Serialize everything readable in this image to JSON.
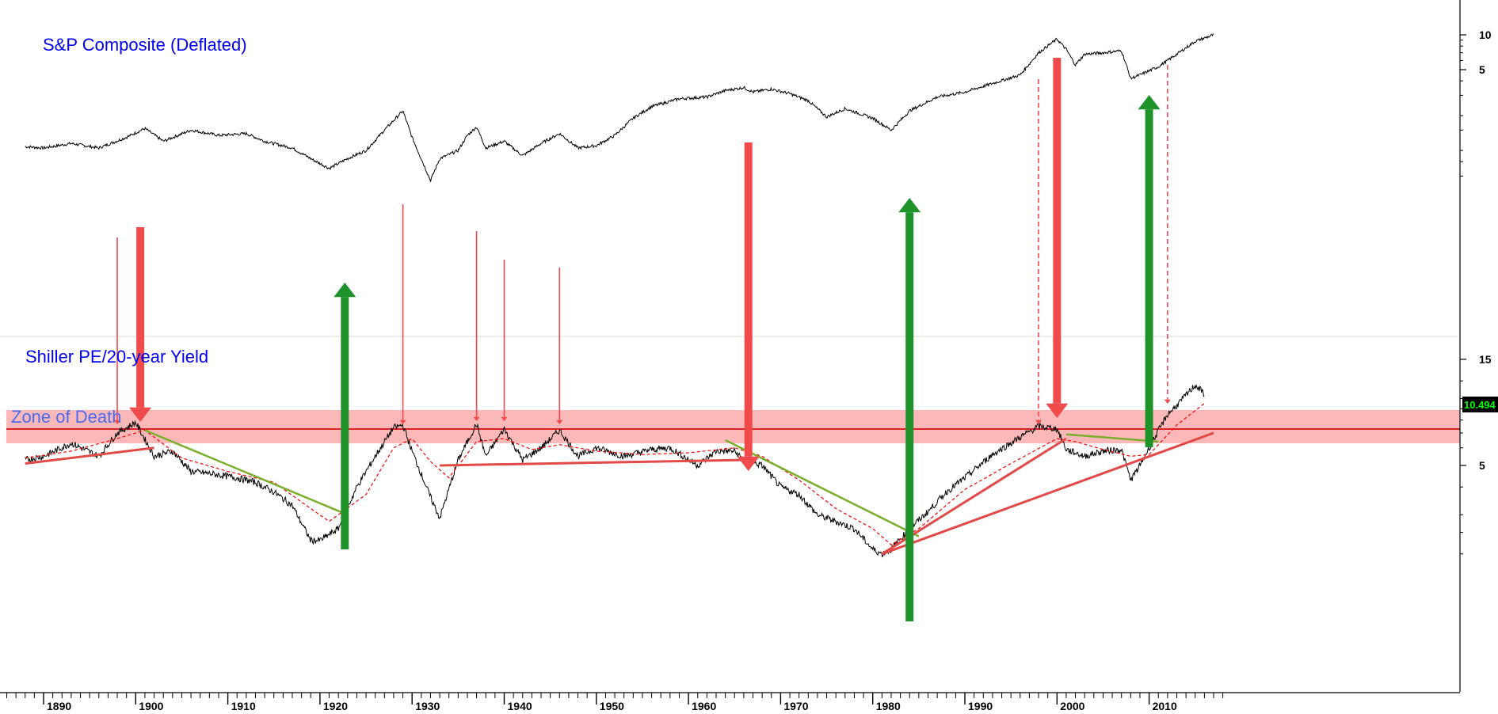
{
  "chart_data": [
    {
      "panel": "top",
      "type": "line",
      "title": "S&P Composite (Deflated)",
      "xlabel": "",
      "ylabel": "",
      "scale": "log",
      "right_axis_ticks": [
        "10",
        "5"
      ],
      "series": [
        {
          "color": "#000000",
          "x": [
            1888,
            1890,
            1893,
            1896,
            1899,
            1901,
            1903,
            1906,
            1909,
            1912,
            1914,
            1917,
            1919,
            1921,
            1923,
            1925,
            1927,
            1929,
            1930,
            1932,
            1933,
            1935,
            1936,
            1937,
            1938,
            1940,
            1942,
            1944,
            1946,
            1948,
            1950,
            1952,
            1954,
            1956,
            1959,
            1962,
            1964,
            1966,
            1967,
            1969,
            1971,
            1973,
            1975,
            1977,
            1980,
            1982,
            1984,
            1987,
            1990,
            1993,
            1996,
            1998,
            2000,
            2001,
            2002,
            2003,
            2005,
            2007,
            2008,
            2009,
            2011,
            2013,
            2015,
            2017
          ],
          "y": [
            1.08,
            1.05,
            1.15,
            1.05,
            1.3,
            1.55,
            1.2,
            1.5,
            1.35,
            1.4,
            1.2,
            1.05,
            0.85,
            0.7,
            0.85,
            1.0,
            1.5,
            2.2,
            1.3,
            0.55,
            0.85,
            1.0,
            1.35,
            1.6,
            1.05,
            1.2,
            0.9,
            1.15,
            1.4,
            1.05,
            1.1,
            1.35,
            1.9,
            2.4,
            2.8,
            2.9,
            3.3,
            3.5,
            3.2,
            3.4,
            3.1,
            2.7,
            1.95,
            2.3,
            1.9,
            1.5,
            2.2,
            2.9,
            3.2,
            3.8,
            4.5,
            7.0,
            9.2,
            7.5,
            5.5,
            6.8,
            7.0,
            7.3,
            4.2,
            4.5,
            5.3,
            6.8,
            8.8,
            10.0
          ]
        }
      ]
    },
    {
      "panel": "bottom",
      "type": "line",
      "title": "Shiller PE/20-year Yield",
      "xlabel": "",
      "ylabel": "",
      "scale": "log",
      "right_axis_ticks": [
        "15",
        "5"
      ],
      "last_value": "10.494",
      "threshold_label": "Zone of Death",
      "threshold_value": 8,
      "series": [
        {
          "color": "#000000",
          "x": [
            1888,
            1890,
            1893,
            1896,
            1898,
            1900,
            1902,
            1904,
            1906,
            1908,
            1911,
            1913,
            1915,
            1917,
            1919,
            1920,
            1922,
            1924,
            1926,
            1928,
            1929,
            1930,
            1932,
            1933,
            1935,
            1937,
            1938,
            1940,
            1942,
            1944,
            1946,
            1948,
            1950,
            1953,
            1956,
            1958,
            1961,
            1963,
            1965,
            1966,
            1968,
            1970,
            1972,
            1974,
            1976,
            1978,
            1980,
            1981,
            1982,
            1984,
            1986,
            1988,
            1990,
            1993,
            1996,
            1998,
            2000,
            2001,
            2003,
            2005,
            2007,
            2008,
            2009,
            2010,
            2012,
            2013,
            2015,
            2016
          ],
          "y": [
            5.3,
            5.5,
            6.3,
            5.5,
            7.0,
            7.8,
            5.5,
            5.8,
            4.7,
            4.6,
            4.4,
            4.2,
            3.8,
            3.3,
            2.3,
            2.3,
            2.6,
            4.0,
            5.5,
            7.4,
            7.6,
            5.8,
            3.6,
            2.9,
            5.3,
            7.7,
            5.5,
            7.3,
            5.3,
            6.0,
            7.2,
            5.5,
            6.0,
            5.5,
            5.9,
            6.0,
            5.0,
            5.8,
            5.8,
            5.3,
            5.0,
            4.0,
            3.7,
            3.0,
            2.8,
            2.6,
            2.1,
            2.0,
            2.1,
            2.6,
            3.1,
            3.8,
            4.4,
            5.6,
            6.7,
            7.5,
            7.3,
            5.9,
            5.5,
            5.8,
            5.9,
            4.3,
            5.0,
            6.0,
            8.5,
            9.3,
            11.5,
            10.494
          ]
        },
        {
          "color": "#ff0000",
          "style": "dashed",
          "x": [
            1888,
            1893,
            1898,
            1901,
            1905,
            1910,
            1915,
            1919,
            1921,
            1925,
            1928,
            1930,
            1932,
            1934,
            1937,
            1940,
            1943,
            1946,
            1950,
            1955,
            1960,
            1965,
            1968,
            1972,
            1976,
            1980,
            1982,
            1985,
            1990,
            1995,
            2000,
            2002,
            2005,
            2008,
            2010,
            2013,
            2016
          ],
          "y": [
            5.4,
            5.8,
            6.6,
            7.2,
            5.4,
            4.7,
            4.2,
            3.2,
            2.8,
            3.7,
            6.0,
            6.6,
            5.2,
            4.4,
            6.4,
            6.6,
            5.9,
            6.2,
            5.8,
            5.6,
            5.7,
            6.0,
            5.5,
            4.3,
            3.2,
            2.6,
            2.2,
            2.6,
            3.9,
            5.1,
            6.6,
            6.4,
            5.9,
            5.5,
            5.6,
            7.6,
            9.5
          ]
        }
      ]
    }
  ],
  "x_axis": {
    "ticks": [
      "1890",
      "1900",
      "1910",
      "1920",
      "1930",
      "1940",
      "1950",
      "1960",
      "1970",
      "1980",
      "1990",
      "2000",
      "2010"
    ]
  },
  "colors": {
    "sell_arrow": "#f04a4a",
    "buy_arrow": "#20922a",
    "trendline_up": "#e24a48",
    "trendline_down": "#7aae2c",
    "zone_band": "#fbb8b8",
    "zone_line": "#dd2222",
    "badge_bg": "#000000",
    "badge_text": "#00ff00"
  }
}
